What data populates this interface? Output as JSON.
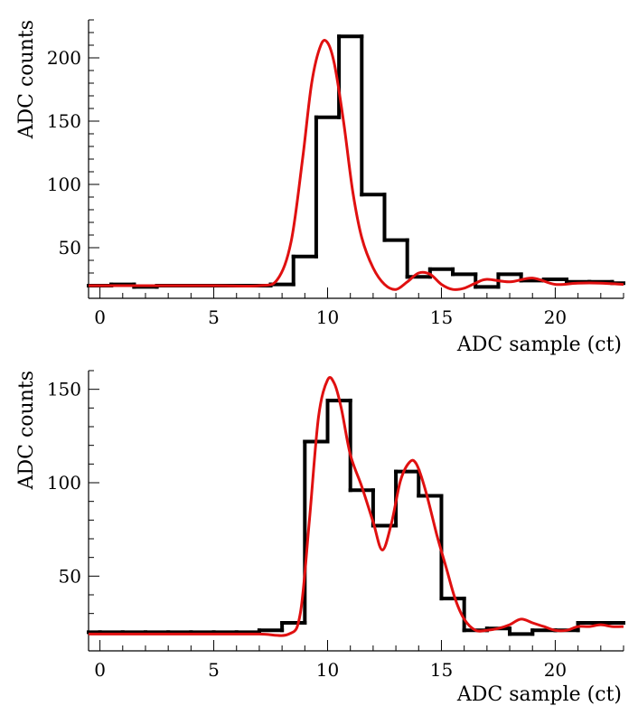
{
  "colors": {
    "histogram": "#000000",
    "fit": "#e01010",
    "axis": "#000000"
  },
  "chart_data": [
    {
      "type": "line",
      "name": "top-panel",
      "xlabel": "ADC sample (ct)",
      "ylabel": "ADC counts",
      "xlim": [
        -0.5,
        23
      ],
      "ylim": [
        10,
        230
      ],
      "x_ticks": [
        0,
        5,
        10,
        15,
        20
      ],
      "x_tick_labels": [
        "0",
        "5",
        "10",
        "15",
        "20"
      ],
      "y_ticks": [
        50,
        100,
        150,
        200
      ],
      "y_tick_labels": [
        "50",
        "100",
        "150",
        "200"
      ],
      "series": [
        {
          "name": "histogram",
          "kind": "step",
          "bin_edges": [
            -0.5,
            0.5,
            1.5,
            2.5,
            3.5,
            4.5,
            5.5,
            6.5,
            7.5,
            8.5,
            9.5,
            10.5,
            11.5,
            12.5,
            13.5,
            14.5,
            15.5,
            16.5,
            17.5,
            18.5,
            19.5,
            20.5,
            21.5,
            22.5,
            23
          ],
          "values": [
            20,
            21,
            19,
            20,
            20,
            20,
            20,
            20,
            21,
            43,
            153,
            217,
            92,
            56,
            27,
            33,
            29,
            19,
            29,
            24,
            25,
            23,
            23,
            22
          ]
        },
        {
          "name": "fit",
          "kind": "curve",
          "x": [
            -0.5,
            2,
            5,
            7,
            7.8,
            8.4,
            8.9,
            9.3,
            9.7,
            10.0,
            10.3,
            10.7,
            11.1,
            11.5,
            12.0,
            12.5,
            13.0,
            13.5,
            14.0,
            14.5,
            15.0,
            15.5,
            16.0,
            16.5,
            17.0,
            18.0,
            19.0,
            20.0,
            21.0,
            22.0,
            23.0
          ],
          "y": [
            20,
            20,
            20,
            20,
            25,
            55,
            120,
            180,
            210,
            212,
            195,
            150,
            95,
            58,
            34,
            21,
            17,
            23,
            30,
            29,
            21,
            17,
            18,
            22,
            25,
            23,
            26,
            21,
            22,
            22,
            21
          ]
        }
      ]
    },
    {
      "type": "line",
      "name": "bottom-panel",
      "xlabel": "ADC sample (ct)",
      "ylabel": "ADC counts",
      "xlim": [
        -0.5,
        23
      ],
      "ylim": [
        10,
        160
      ],
      "x_ticks": [
        0,
        5,
        10,
        15,
        20
      ],
      "x_tick_labels": [
        "0",
        "5",
        "10",
        "15",
        "20"
      ],
      "y_ticks": [
        50,
        100,
        150
      ],
      "y_tick_labels": [
        "50",
        "100",
        "150"
      ],
      "series": [
        {
          "name": "histogram",
          "kind": "step",
          "bin_edges": [
            -0.5,
            0,
            1,
            2,
            3,
            4,
            5,
            6,
            7,
            8,
            9,
            10,
            11,
            12,
            13,
            14,
            15,
            16,
            17,
            18,
            19,
            20,
            21,
            22,
            23
          ],
          "values": [
            20,
            20,
            20,
            20,
            20,
            20,
            20,
            20,
            21,
            25,
            122,
            144,
            96,
            77,
            106,
            93,
            38,
            21,
            22,
            19,
            21,
            21,
            25,
            25
          ]
        },
        {
          "name": "fit",
          "kind": "curve",
          "x": [
            -0.5,
            2,
            5,
            7,
            8.3,
            8.8,
            9.2,
            9.6,
            10.0,
            10.3,
            10.6,
            11.0,
            11.5,
            12.0,
            12.4,
            12.8,
            13.2,
            13.6,
            13.9,
            14.3,
            14.8,
            15.2,
            15.6,
            16.0,
            16.5,
            17.0,
            17.5,
            18.0,
            18.5,
            19.0,
            19.5,
            20.0,
            20.5,
            21.0,
            21.5,
            22.0,
            22.5,
            23.0
          ],
          "y": [
            19,
            19,
            19,
            19,
            19,
            30,
            80,
            135,
            155,
            153,
            140,
            115,
            98,
            79,
            64,
            78,
            101,
            111,
            110,
            96,
            72,
            55,
            38,
            27,
            21,
            21,
            22,
            24,
            27,
            25,
            23,
            21,
            21,
            23,
            23,
            24,
            23,
            23
          ]
        }
      ]
    }
  ]
}
